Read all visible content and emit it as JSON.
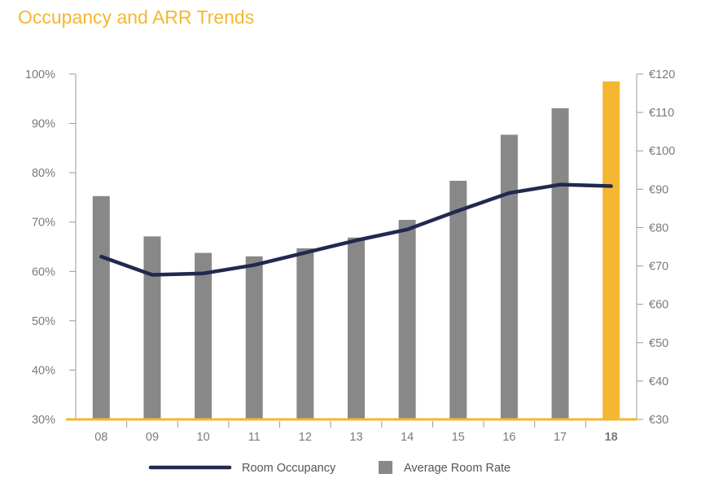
{
  "page": {
    "title": "Occupancy and ARR Trends"
  },
  "colors": {
    "title": "#f4b731",
    "line": "#21294e",
    "bar": "#888888",
    "highlight": "#f4b731",
    "axis": "#999999",
    "baseline": "#f4b731"
  },
  "chart_data": {
    "type": "bar+line",
    "title": "Occupancy and ARR Trends",
    "categories": [
      "08",
      "09",
      "10",
      "11",
      "12",
      "13",
      "14",
      "15",
      "16",
      "17",
      "18"
    ],
    "highlight_category": "18",
    "left_axis": {
      "ylim": [
        30,
        100
      ],
      "step": 10,
      "format": "percent",
      "ticks": [
        "30%",
        "40%",
        "50%",
        "60%",
        "70%",
        "80%",
        "90%",
        "100%"
      ]
    },
    "right_axis": {
      "ylim": [
        30,
        120
      ],
      "step": 10,
      "format": "euro",
      "ticks": [
        "€30",
        "€40",
        "€50",
        "€60",
        "€70",
        "€80",
        "€90",
        "€100",
        "€110",
        "€120"
      ]
    },
    "series": [
      {
        "name": "Room Occupancy",
        "type": "line",
        "axis": "left",
        "values": [
          63,
          59.3,
          59.6,
          61.3,
          63.8,
          66.3,
          68.5,
          72.3,
          75.9,
          77.6,
          77.3
        ]
      },
      {
        "name": "Average Room Rate",
        "type": "bar",
        "axis": "right",
        "values": [
          88.2,
          77.7,
          73.4,
          72.5,
          74.6,
          77.4,
          82.0,
          92.2,
          104.2,
          111.1,
          118.1
        ]
      }
    ],
    "legend": {
      "placement": "bottom-center",
      "items": [
        "Room Occupancy",
        "Average Room Rate"
      ]
    }
  }
}
